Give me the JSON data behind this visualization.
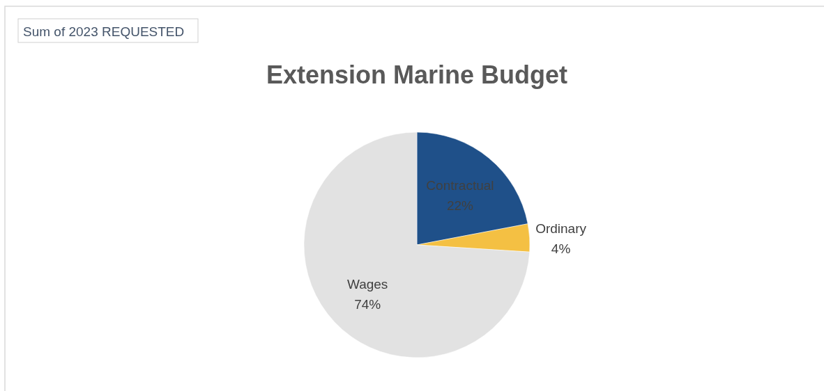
{
  "chart_data": {
    "type": "pie",
    "title": "Extension Marine Budget",
    "annotations": [
      "Sum of 2023 REQUESTED"
    ],
    "categories": [
      "Contractual",
      "Ordinary",
      "Wages"
    ],
    "values": [
      22,
      4,
      74
    ],
    "colors": [
      "#1f5089",
      "#f4c043",
      "#e2e2e2"
    ],
    "value_labels": [
      "22%",
      "4%",
      "74%"
    ]
  }
}
